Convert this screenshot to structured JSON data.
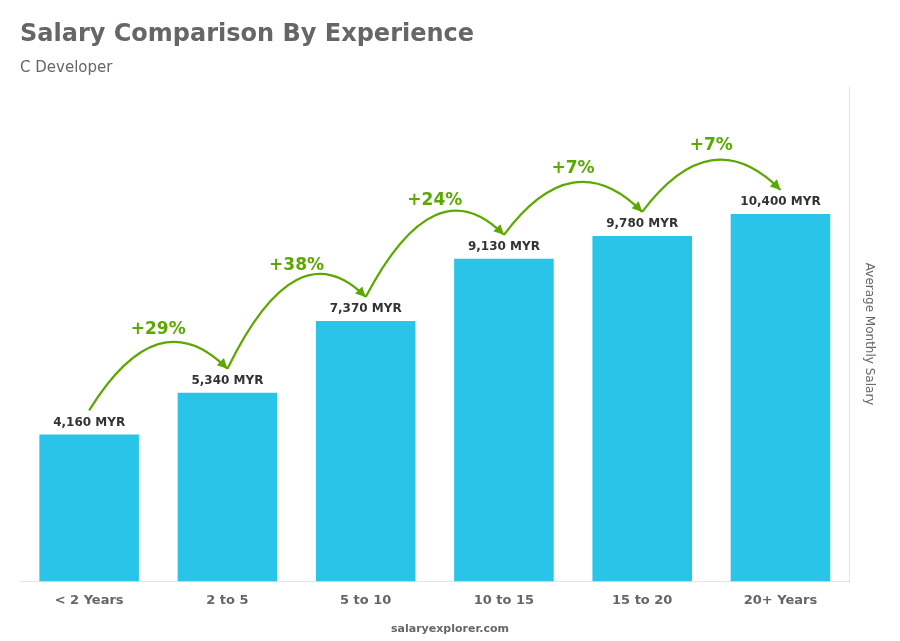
{
  "chart_data": {
    "type": "bar",
    "title": "Salary Comparison By Experience",
    "subtitle": "C Developer",
    "ylabel": "Average Monthly Salary",
    "categories": [
      "< 2 Years",
      "2 to 5",
      "5 to 10",
      "10 to 15",
      "15 to 20",
      "20+ Years"
    ],
    "values": [
      4160,
      5340,
      7370,
      9130,
      9780,
      10400
    ],
    "value_labels": [
      "4,160 MYR",
      "5,340 MYR",
      "7,370 MYR",
      "9,130 MYR",
      "9,780 MYR",
      "10,400 MYR"
    ],
    "data_labels": true,
    "annotations": [
      "+29%",
      "+38%",
      "+24%",
      "+7%",
      "+7%"
    ],
    "credit": "salaryexplorer.com",
    "color": "#29c4e8",
    "ylim": [
      0,
      14000
    ],
    "grid": false,
    "tick_labels": "x"
  }
}
